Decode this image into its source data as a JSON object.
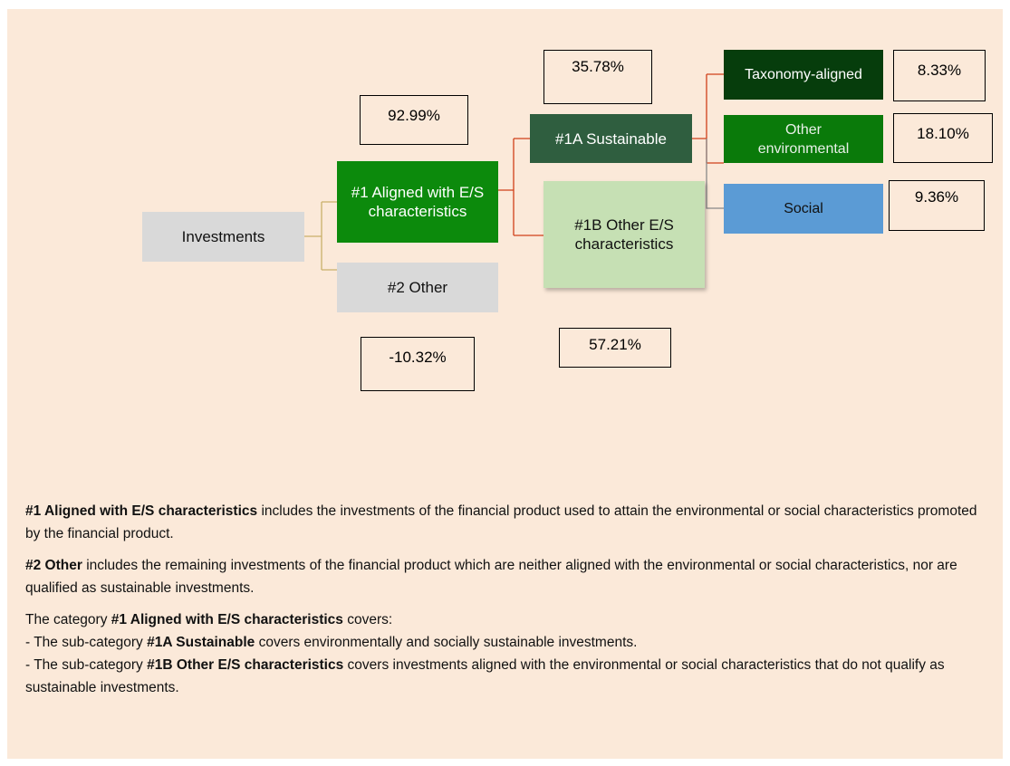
{
  "nodes": [
    {
      "label": "Investments"
    },
    {
      "label": "#1 Aligned with E/S characteristics"
    },
    {
      "label": "#2 Other"
    },
    {
      "label": "#1A Sustainable"
    },
    {
      "label": "#1B Other E/S characteristics"
    },
    {
      "label": "Taxonomy-aligned"
    },
    {
      "label": "Other environmental"
    },
    {
      "label": "Social"
    }
  ],
  "percentages": [
    "92.99%",
    "-10.32%",
    "35.78%",
    "57.21%",
    "8.33%",
    "18.10%",
    "9.36%"
  ],
  "notes": [
    [
      [
        {
          "bold": "#1 Aligned with E/S characteristics"
        },
        {
          "text": " includes the investments of the financial product used to attain the environmental or social characteristics promoted by the financial product."
        }
      ]
    ],
    [
      [
        {
          "bold": "#2 Other"
        },
        {
          "text": " includes the remaining investments of the financial product which are neither aligned with the environmental or social characteristics, nor are qualified as sustainable investments."
        }
      ]
    ],
    [
      [
        {
          "text": "The category "
        },
        {
          "bold": "#1 Aligned with E/S characteristics"
        },
        {
          "text": " covers:"
        }
      ],
      [
        {
          "text": "- The sub-category "
        },
        {
          "bold": "#1A Sustainable"
        },
        {
          "text": " covers environmentally and socially sustainable investments."
        }
      ],
      [
        {
          "text": "- The sub-category "
        },
        {
          "bold": "#1B Other E/S characteristics"
        },
        {
          "text": " covers investments aligned with the environmental or social characteristics that do not qualify as sustainable investments."
        }
      ]
    ]
  ]
}
